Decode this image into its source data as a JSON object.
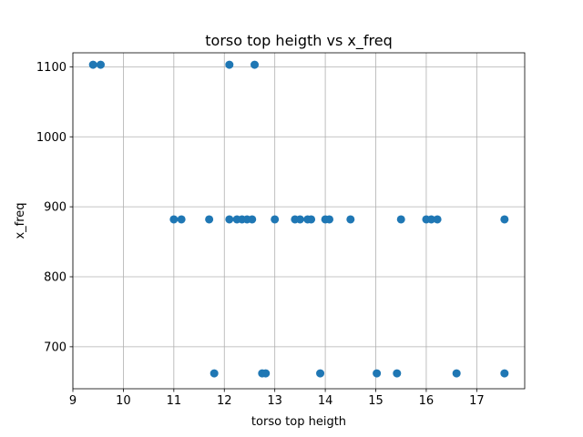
{
  "chart_data": {
    "type": "scatter",
    "title": "torso top heigth vs x_freq",
    "xlabel": "torso top heigth",
    "ylabel": "x_freq",
    "xlim": [
      9.0,
      17.95
    ],
    "ylim": [
      640,
      1120
    ],
    "xticks": [
      9,
      10,
      11,
      12,
      13,
      14,
      15,
      16,
      17
    ],
    "yticks": [
      700,
      800,
      900,
      1000,
      1100
    ],
    "grid": true,
    "marker_color": "#1f77b4",
    "points": [
      {
        "x": 9.4,
        "y": 1103
      },
      {
        "x": 9.55,
        "y": 1103
      },
      {
        "x": 12.1,
        "y": 1103
      },
      {
        "x": 12.6,
        "y": 1103
      },
      {
        "x": 11.0,
        "y": 882
      },
      {
        "x": 11.15,
        "y": 882
      },
      {
        "x": 11.7,
        "y": 882
      },
      {
        "x": 12.1,
        "y": 882
      },
      {
        "x": 12.25,
        "y": 882
      },
      {
        "x": 12.35,
        "y": 882
      },
      {
        "x": 12.45,
        "y": 882
      },
      {
        "x": 12.55,
        "y": 882
      },
      {
        "x": 13.0,
        "y": 882
      },
      {
        "x": 13.4,
        "y": 882
      },
      {
        "x": 13.5,
        "y": 882
      },
      {
        "x": 13.65,
        "y": 882
      },
      {
        "x": 13.72,
        "y": 882
      },
      {
        "x": 14.0,
        "y": 882
      },
      {
        "x": 14.08,
        "y": 882
      },
      {
        "x": 14.5,
        "y": 882
      },
      {
        "x": 15.5,
        "y": 882
      },
      {
        "x": 16.0,
        "y": 882
      },
      {
        "x": 16.1,
        "y": 882
      },
      {
        "x": 16.22,
        "y": 882
      },
      {
        "x": 17.55,
        "y": 882
      },
      {
        "x": 11.8,
        "y": 662
      },
      {
        "x": 12.75,
        "y": 662
      },
      {
        "x": 12.82,
        "y": 662
      },
      {
        "x": 13.9,
        "y": 662
      },
      {
        "x": 15.02,
        "y": 662
      },
      {
        "x": 15.42,
        "y": 662
      },
      {
        "x": 16.6,
        "y": 662
      },
      {
        "x": 17.55,
        "y": 662
      }
    ]
  }
}
